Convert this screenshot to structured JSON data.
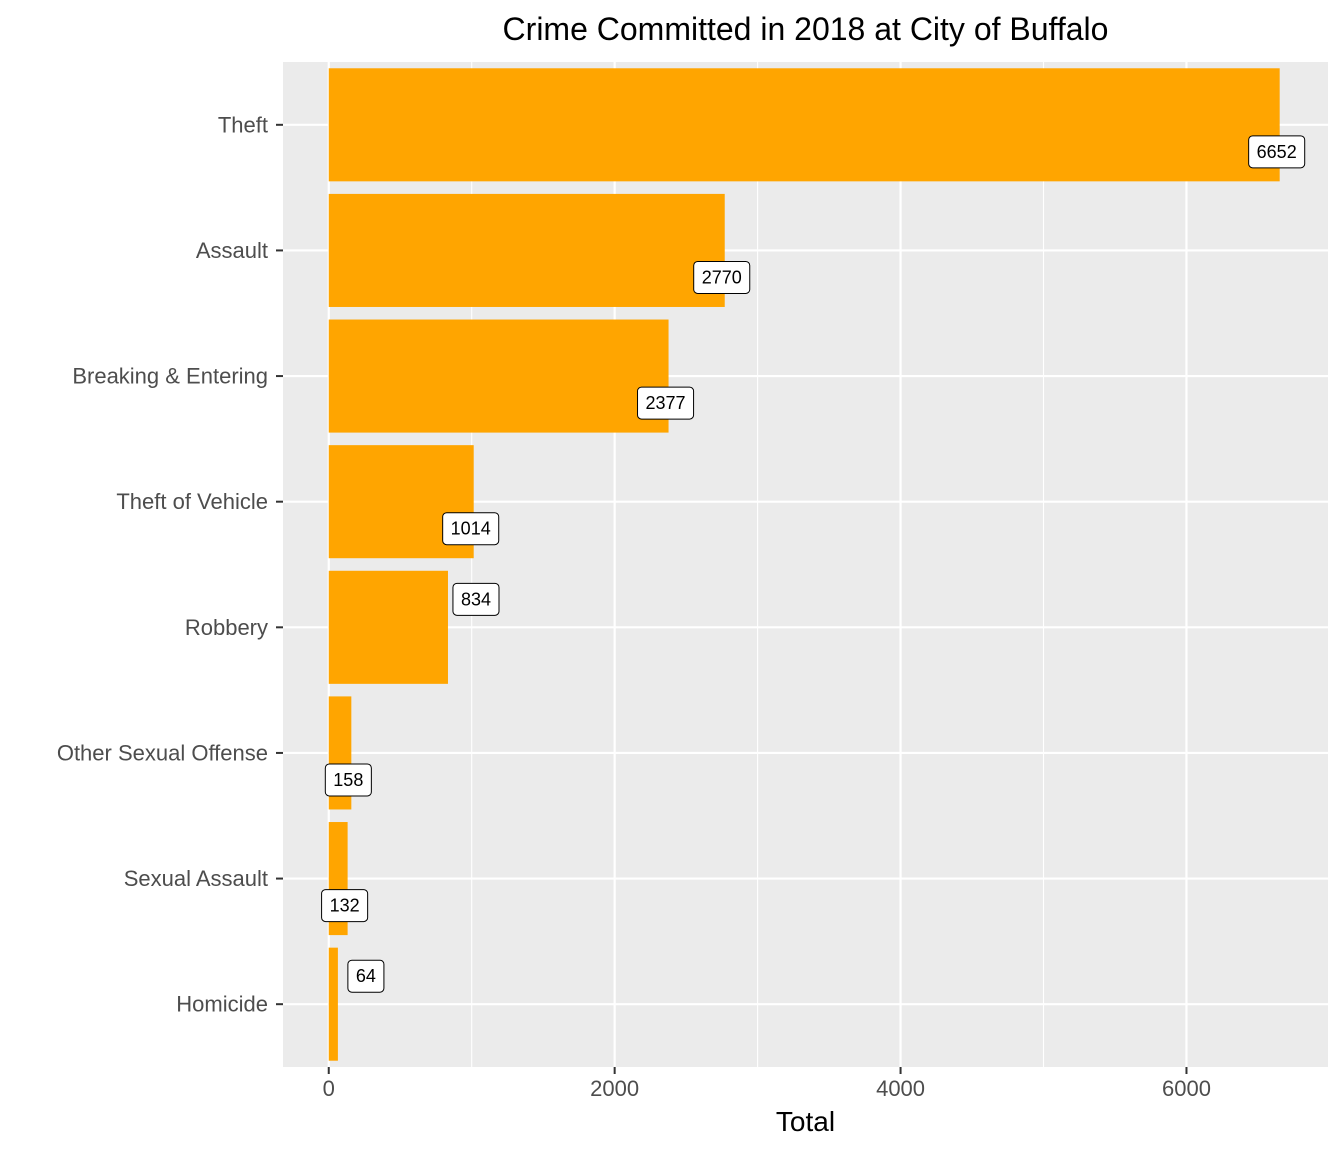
{
  "chart_data": {
    "type": "bar",
    "orientation": "horizontal",
    "title": "Crime Committed in 2018 at City of Buffalo",
    "xlabel": "Total",
    "ylabel": "",
    "categories": [
      "Theft",
      "Assault",
      "Breaking & Entering",
      "Theft of Vehicle",
      "Robbery",
      "Other Sexual Offense",
      "Sexual Assault",
      "Homicide"
    ],
    "values": [
      6652,
      2770,
      2377,
      1014,
      834,
      158,
      132,
      64
    ],
    "xlim": [
      -320,
      6990
    ],
    "xticks": [
      0,
      2000,
      4000,
      6000
    ],
    "grid": true,
    "legend": "none",
    "colors": {
      "bar": "#FFA500",
      "panel": "#EBEBEB",
      "grid": "#FFFFFF"
    }
  }
}
